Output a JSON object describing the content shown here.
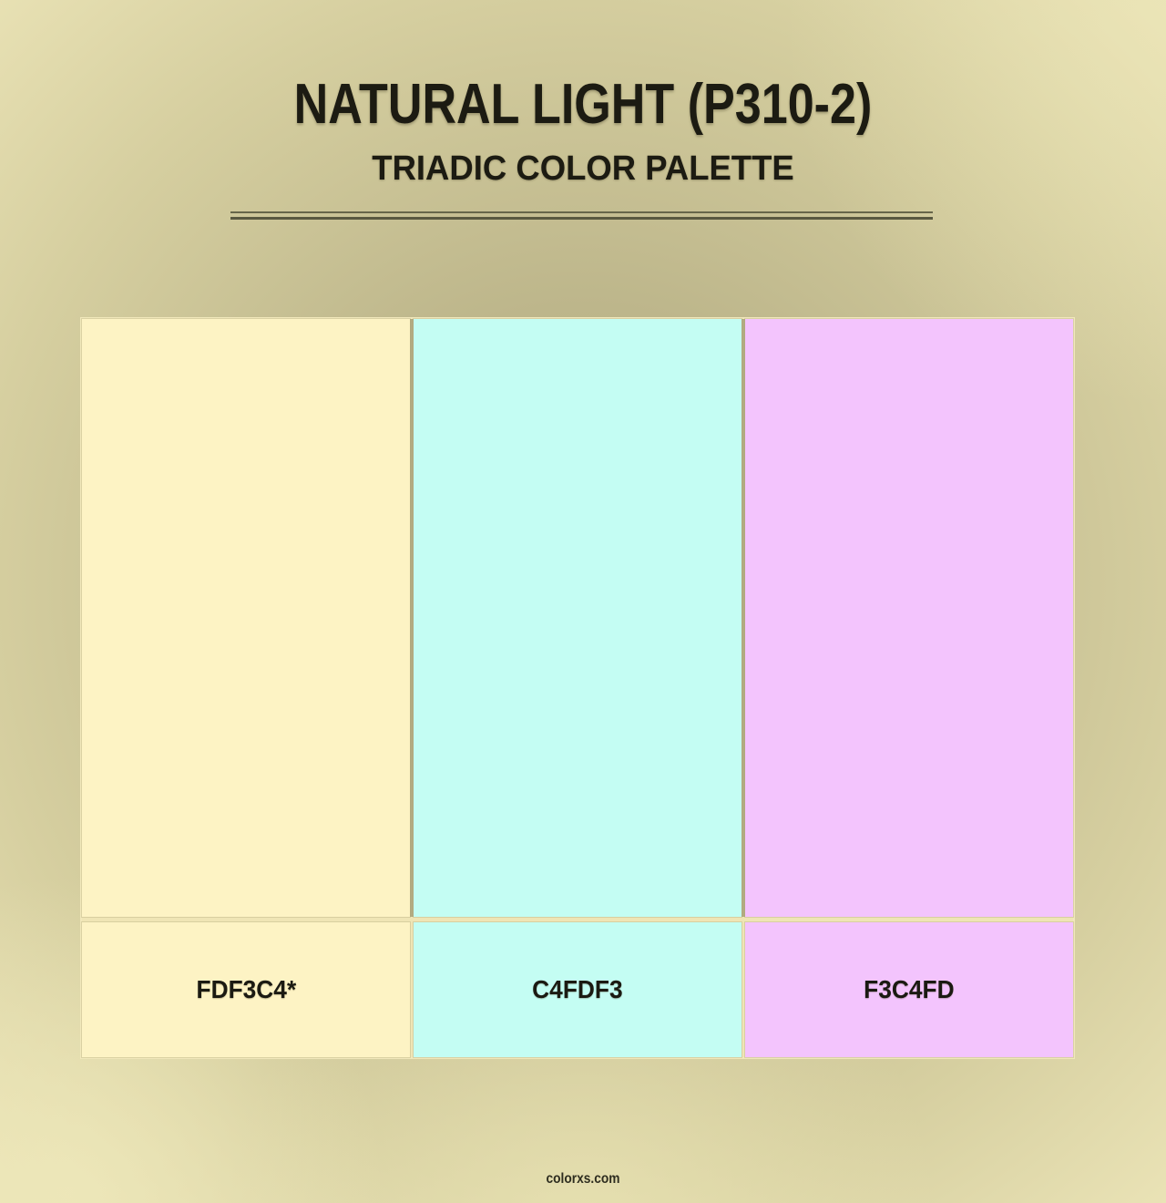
{
  "header": {
    "title": "NATURAL LIGHT (P310-2)",
    "subtitle": "TRIADIC COLOR PALETTE"
  },
  "palette": {
    "swatches": [
      {
        "label": "FDF3C4*",
        "hex": "#FDF3C4"
      },
      {
        "label": "C4FDF3",
        "hex": "#C4FDF3"
      },
      {
        "label": "F3C4FD",
        "hex": "#F3C4FD"
      }
    ]
  },
  "footer": {
    "site": "colorxs.com"
  },
  "colors": {
    "text": "#1c1b12",
    "divider": "#5d5c42",
    "panel_border": "#f1e8bb",
    "column_gap": "#b2ab81",
    "background_center": "#b1aa7f",
    "background_edge": "#ebe4b7"
  }
}
